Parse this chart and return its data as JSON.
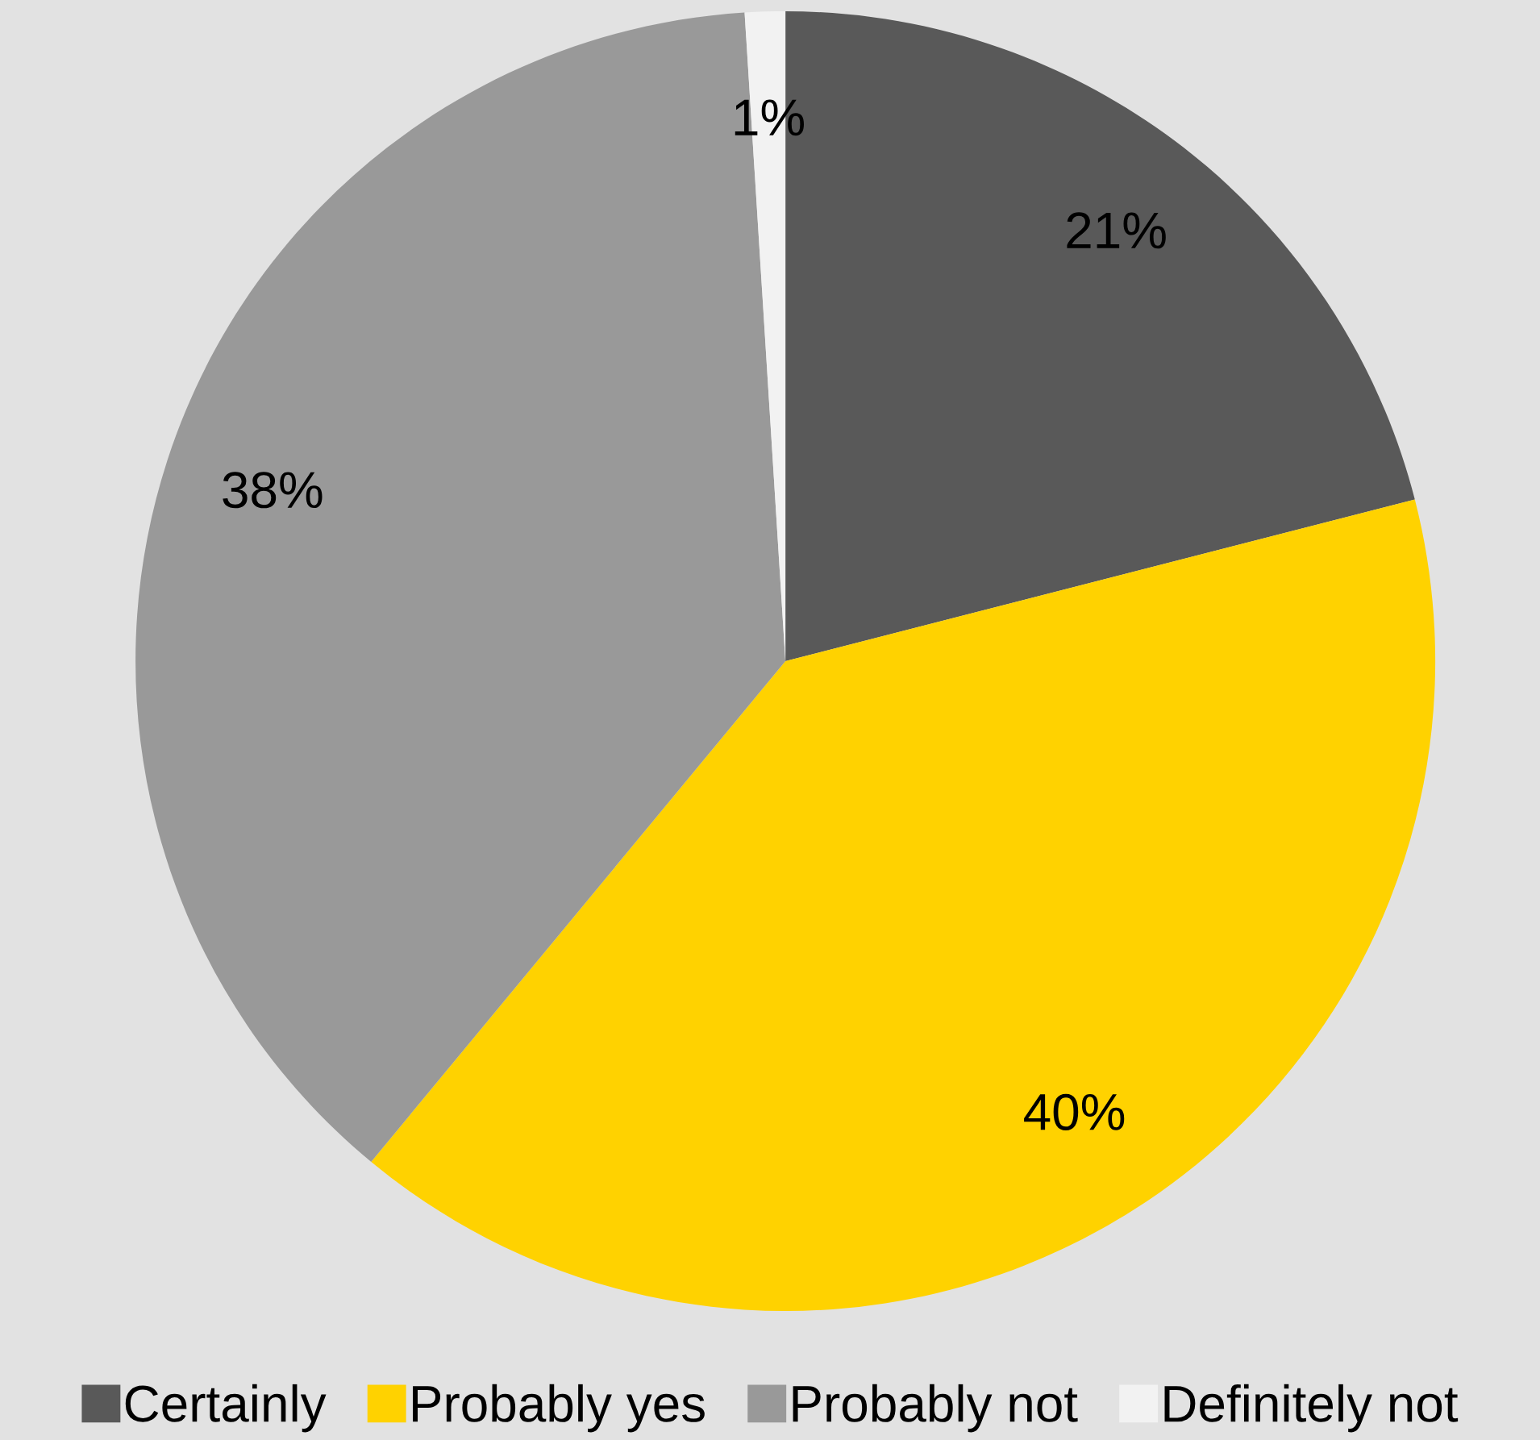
{
  "chart_data": {
    "type": "pie",
    "categories": [
      "Certainly",
      "Probably yes",
      "Probably not",
      "Definitely not"
    ],
    "values": [
      21,
      40,
      38,
      1
    ],
    "colors": [
      "#595959",
      "#ffd200",
      "#999999",
      "#f2f2f2"
    ],
    "value_labels": [
      "21%",
      "40%",
      "38%",
      "1%"
    ],
    "legend": "bottom"
  }
}
